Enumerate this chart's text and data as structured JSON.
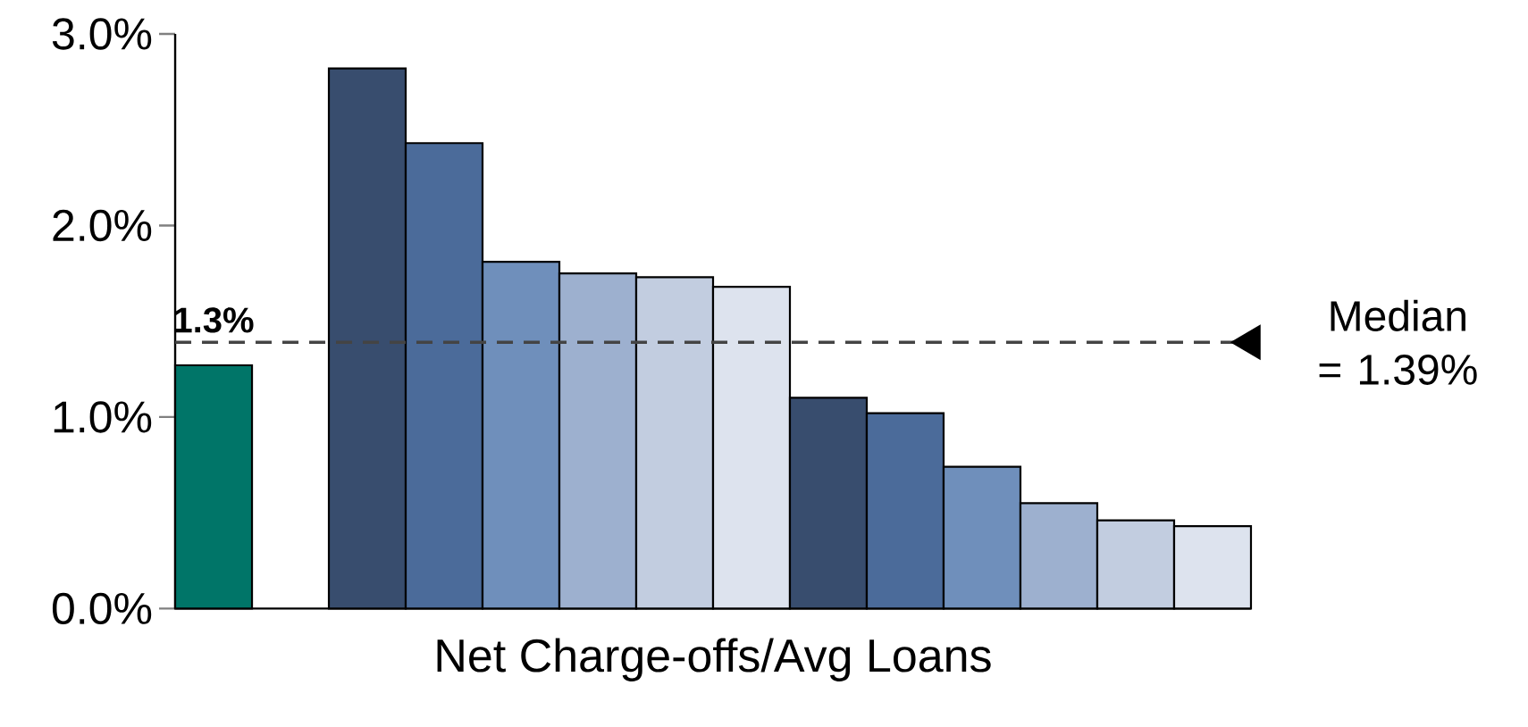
{
  "chart_data": {
    "type": "bar",
    "xlabel": "Net Charge-offs/Avg Loans",
    "categories": [
      null,
      null,
      null,
      null,
      null,
      null,
      null,
      null,
      null,
      null,
      null,
      null,
      null,
      null
    ],
    "values": [
      1.27,
      null,
      2.82,
      2.43,
      1.81,
      1.75,
      1.73,
      1.68,
      1.1,
      1.02,
      0.74,
      0.55,
      0.46,
      0.43
    ],
    "colors": [
      "#007568",
      null,
      "#384d6e",
      "#4b6b9a",
      "#6f8fbb",
      "#9db0cf",
      "#c2cde0",
      "#dde3ee",
      "#384d6e",
      "#4b6b9a",
      "#6f8fbb",
      "#9db0cf",
      "#c2cde0",
      "#dde3ee"
    ],
    "value_labels": [
      "1.3%",
      null,
      null,
      null,
      null,
      null,
      null,
      null,
      null,
      null,
      null,
      null,
      null,
      null
    ],
    "ylim": [
      0,
      3
    ],
    "yticks": [
      {
        "value": 0,
        "label": "0.0%"
      },
      {
        "value": 1,
        "label": "1.0%"
      },
      {
        "value": 2,
        "label": "2.0%"
      },
      {
        "value": 3,
        "label": "3.0%"
      }
    ],
    "tick_labels": "y",
    "ref_lines": [
      {
        "axis": "y",
        "value": 1.39,
        "label": "Median = 1.39%",
        "color": "#444444",
        "line_style": "dashed"
      }
    ]
  }
}
